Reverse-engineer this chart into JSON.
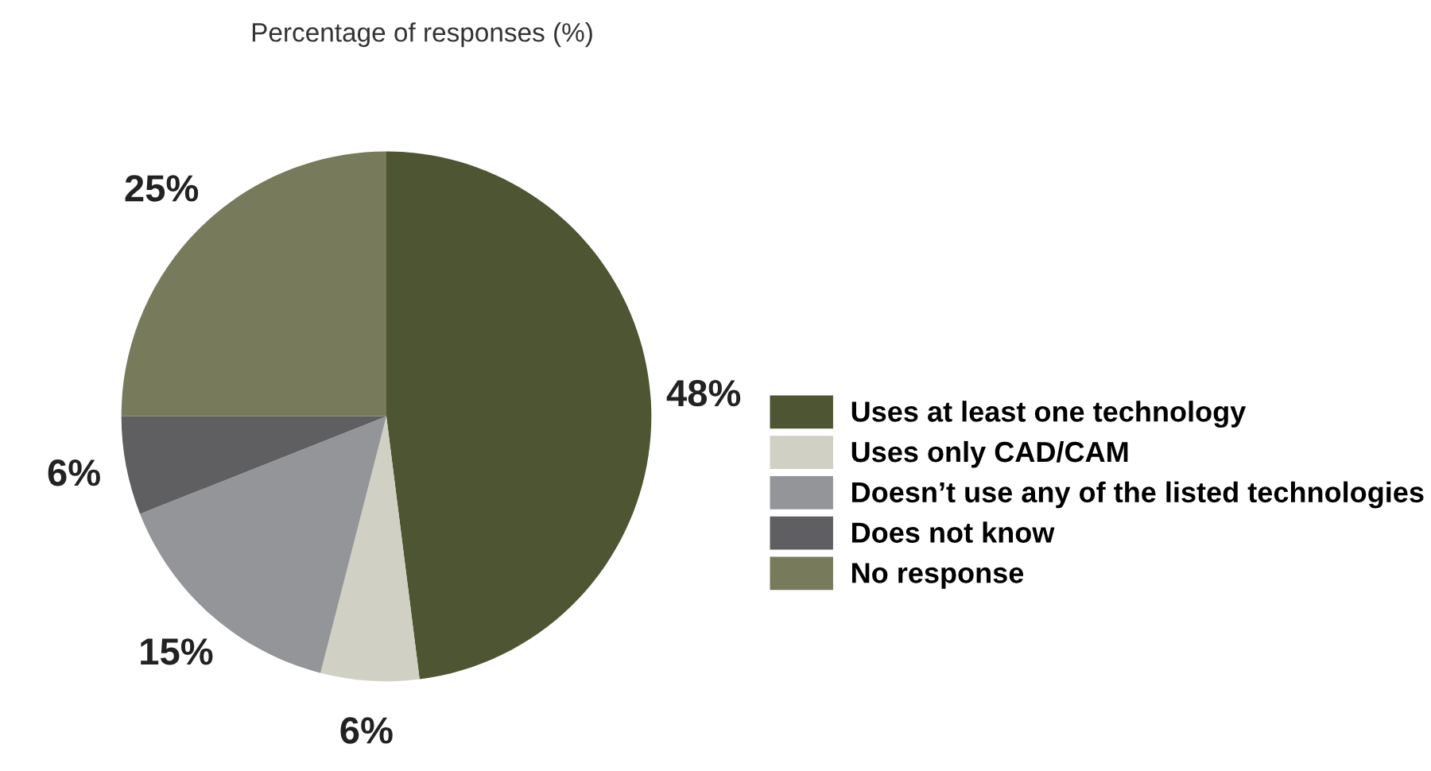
{
  "chart_data": {
    "type": "pie",
    "title": "Percentage of responses (%)",
    "categories": [
      "Uses at least one technology",
      "Uses only CAD/CAM",
      "Doesn’t use any of the listed technologies",
      "Does not know",
      "No response"
    ],
    "values": [
      48,
      6,
      15,
      6,
      25
    ],
    "value_labels": [
      "48%",
      "6%",
      "15%",
      "6%",
      "25%"
    ],
    "colors": [
      "#4e5533",
      "#d0d0c4",
      "#949598",
      "#5f5f61",
      "#777b5c"
    ],
    "legend": "right"
  }
}
